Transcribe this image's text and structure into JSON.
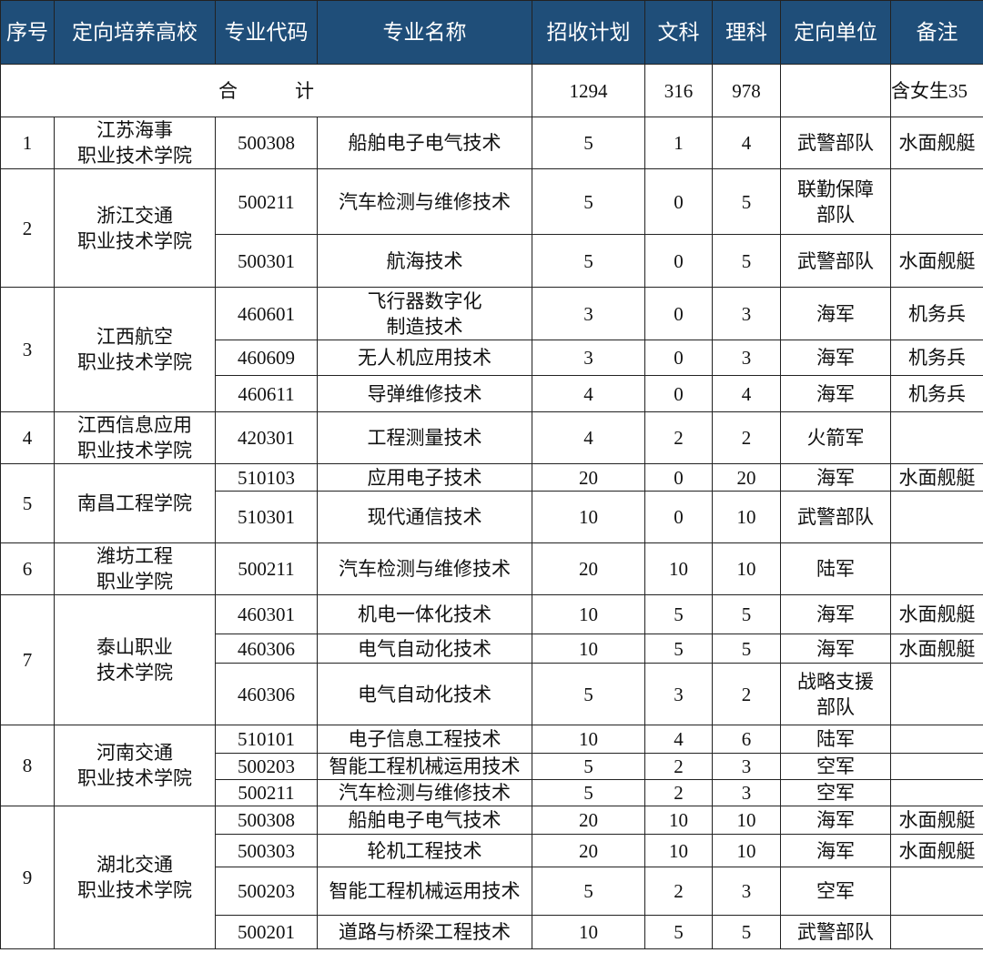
{
  "header": [
    "序号",
    "定向培养高校",
    "专业代码",
    "专业名称",
    "招收计划",
    "文科",
    "理科",
    "定向单位",
    "备注"
  ],
  "colors": {
    "header_bg": "#1f4e79",
    "header_text": "#ffffff"
  },
  "total": {
    "label": "合　　　计",
    "plan": "1294",
    "wen": "316",
    "li": "978",
    "unit": "",
    "note": "含女生35"
  },
  "schools": [
    {
      "no": "1",
      "name": "江苏海事\n职业技术学院",
      "majors": [
        {
          "code": "500308",
          "name": "船舶电子电气技术",
          "plan": "5",
          "wen": "1",
          "li": "4",
          "unit": "武警部队",
          "note": "水面舰艇"
        }
      ]
    },
    {
      "no": "2",
      "name": "浙江交通\n职业技术学院",
      "majors": [
        {
          "code": "500211",
          "name": "汽车检测与维修技术",
          "plan": "5",
          "wen": "0",
          "li": "5",
          "unit": "联勤保障\n部队",
          "note": ""
        },
        {
          "code": "500301",
          "name": "航海技术",
          "plan": "5",
          "wen": "0",
          "li": "5",
          "unit": "武警部队",
          "note": "水面舰艇"
        }
      ]
    },
    {
      "no": "3",
      "name": "江西航空\n职业技术学院",
      "majors": [
        {
          "code": "460601",
          "name": "飞行器数字化\n制造技术",
          "plan": "3",
          "wen": "0",
          "li": "3",
          "unit": "海军",
          "note": "机务兵"
        },
        {
          "code": "460609",
          "name": "无人机应用技术",
          "plan": "3",
          "wen": "0",
          "li": "3",
          "unit": "海军",
          "note": "机务兵"
        },
        {
          "code": "460611",
          "name": "导弹维修技术",
          "plan": "4",
          "wen": "0",
          "li": "4",
          "unit": "海军",
          "note": "机务兵"
        }
      ]
    },
    {
      "no": "4",
      "name": "江西信息应用\n职业技术学院",
      "majors": [
        {
          "code": "420301",
          "name": "工程测量技术",
          "plan": "4",
          "wen": "2",
          "li": "2",
          "unit": "火箭军",
          "note": ""
        }
      ]
    },
    {
      "no": "5",
      "name": "南昌工程学院",
      "majors": [
        {
          "code": "510103",
          "name": "应用电子技术",
          "plan": "20",
          "wen": "0",
          "li": "20",
          "unit": "海军",
          "note": "水面舰艇"
        },
        {
          "code": "510301",
          "name": "现代通信技术",
          "plan": "10",
          "wen": "0",
          "li": "10",
          "unit": "武警部队",
          "note": ""
        }
      ]
    },
    {
      "no": "6",
      "name": "潍坊工程\n职业学院",
      "majors": [
        {
          "code": "500211",
          "name": "汽车检测与维修技术",
          "plan": "20",
          "wen": "10",
          "li": "10",
          "unit": "陆军",
          "note": ""
        }
      ]
    },
    {
      "no": "7",
      "name": "泰山职业\n技术学院",
      "majors": [
        {
          "code": "460301",
          "name": "机电一体化技术",
          "plan": "10",
          "wen": "5",
          "li": "5",
          "unit": "海军",
          "note": "水面舰艇"
        },
        {
          "code": "460306",
          "name": "电气自动化技术",
          "plan": "10",
          "wen": "5",
          "li": "5",
          "unit": "海军",
          "note": "水面舰艇"
        },
        {
          "code": "460306",
          "name": "电气自动化技术",
          "plan": "5",
          "wen": "3",
          "li": "2",
          "unit": "战略支援\n部队",
          "note": ""
        }
      ]
    },
    {
      "no": "8",
      "name": "河南交通\n职业技术学院",
      "majors": [
        {
          "code": "510101",
          "name": "电子信息工程技术",
          "plan": "10",
          "wen": "4",
          "li": "6",
          "unit": "陆军",
          "note": ""
        },
        {
          "code": "500203",
          "name": "智能工程机械运用技术",
          "plan": "5",
          "wen": "2",
          "li": "3",
          "unit": "空军",
          "note": ""
        },
        {
          "code": "500211",
          "name": "汽车检测与维修技术",
          "plan": "5",
          "wen": "2",
          "li": "3",
          "unit": "空军",
          "note": ""
        }
      ]
    },
    {
      "no": "9",
      "name": "湖北交通\n职业技术学院",
      "majors": [
        {
          "code": "500308",
          "name": "船舶电子电气技术",
          "plan": "20",
          "wen": "10",
          "li": "10",
          "unit": "海军",
          "note": "水面舰艇"
        },
        {
          "code": "500303",
          "name": "轮机工程技术",
          "plan": "20",
          "wen": "10",
          "li": "10",
          "unit": "海军",
          "note": "水面舰艇"
        },
        {
          "code": "500203",
          "name": "智能工程机械运用技术",
          "plan": "5",
          "wen": "2",
          "li": "3",
          "unit": "空军",
          "note": ""
        },
        {
          "code": "500201",
          "name": "道路与桥梁工程技术",
          "plan": "10",
          "wen": "5",
          "li": "5",
          "unit": "武警部队",
          "note": ""
        }
      ]
    }
  ]
}
